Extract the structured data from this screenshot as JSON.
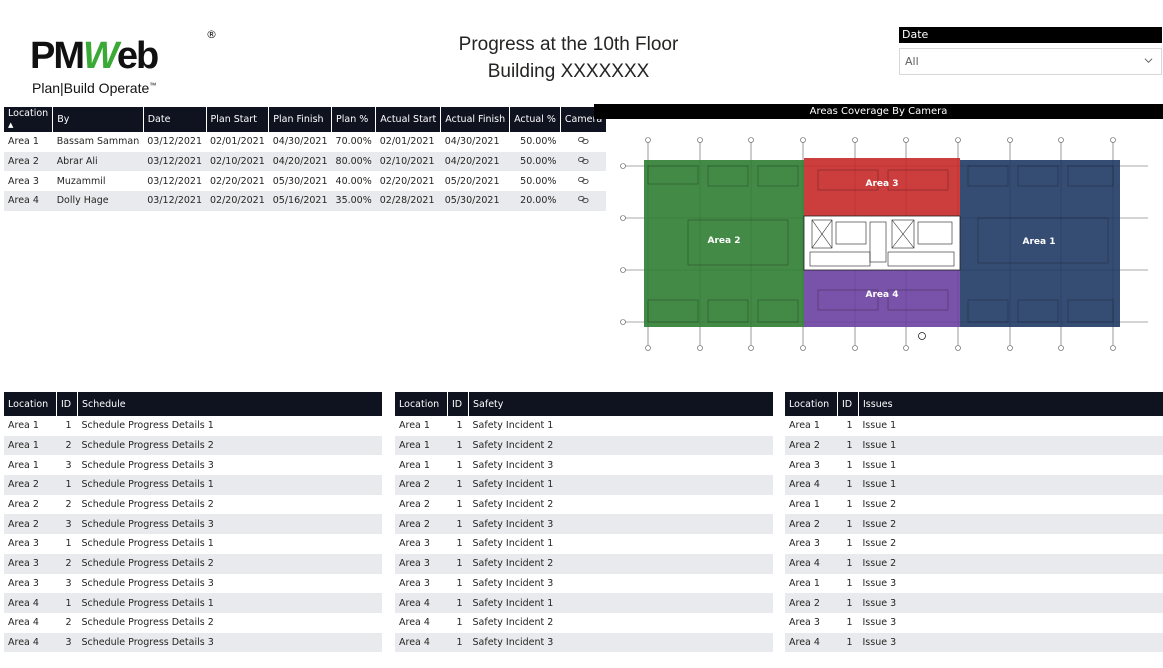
{
  "logo": {
    "main_left": "PM",
    "main_w": "W",
    "main_right": "eb",
    "registered": "®",
    "tagline": "Plan|Build Operate",
    "tm": "™"
  },
  "header": {
    "title_line1": "Progress at the 10th Floor",
    "title_line2": "Building XXXXXXX"
  },
  "date_slicer": {
    "label": "Date",
    "value": "All",
    "icon": "chevron-down-icon"
  },
  "progress_table": {
    "columns": [
      "Location",
      "By",
      "Date",
      "Plan Start",
      "Plan Finish",
      "Plan %",
      "Actual Start",
      "Actual Finish",
      "Actual %",
      "Camera"
    ],
    "sort_indicator": "▲",
    "rows": [
      [
        "Area 1",
        "Bassam Samman",
        "03/12/2021",
        "02/01/2021",
        "04/30/2021",
        "70.00%",
        "02/01/2021",
        "04/30/2021",
        "50.00%"
      ],
      [
        "Area 2",
        "Abrar Ali",
        "03/12/2021",
        "02/10/2021",
        "04/20/2021",
        "80.00%",
        "02/10/2021",
        "04/20/2021",
        "50.00%"
      ],
      [
        "Area 3",
        "Muzammil",
        "03/12/2021",
        "02/20/2021",
        "05/30/2021",
        "40.00%",
        "02/20/2021",
        "05/20/2021",
        "50.00%"
      ],
      [
        "Area 4",
        "Dolly Hage",
        "03/12/2021",
        "02/20/2021",
        "05/16/2021",
        "35.00%",
        "02/28/2021",
        "05/30/2021",
        "20.00%"
      ]
    ],
    "camera_icon": "link-icon"
  },
  "coverage_map": {
    "title": "Areas Coverage By Camera",
    "areas": [
      {
        "label": "Area 1",
        "color": "#1f3864"
      },
      {
        "label": "Area 2",
        "color": "#2e7d32"
      },
      {
        "label": "Area 3",
        "color": "#c62828"
      },
      {
        "label": "Area 4",
        "color": "#6a3fa0"
      }
    ]
  },
  "schedule_table": {
    "columns": [
      "Location",
      "ID",
      "Schedule"
    ],
    "rows": [
      [
        "Area 1",
        "1",
        "Schedule Progress Details 1"
      ],
      [
        "Area 1",
        "2",
        "Schedule Progress Details 2"
      ],
      [
        "Area 1",
        "3",
        "Schedule Progress Details 3"
      ],
      [
        "Area 2",
        "1",
        "Schedule Progress Details 1"
      ],
      [
        "Area 2",
        "2",
        "Schedule Progress Details 2"
      ],
      [
        "Area 2",
        "3",
        "Schedule Progress Details 3"
      ],
      [
        "Area 3",
        "1",
        "Schedule Progress Details 1"
      ],
      [
        "Area 3",
        "2",
        "Schedule Progress Details 2"
      ],
      [
        "Area 3",
        "3",
        "Schedule Progress Details 3"
      ],
      [
        "Area 4",
        "1",
        "Schedule Progress Details 1"
      ],
      [
        "Area 4",
        "2",
        "Schedule Progress Details 2"
      ],
      [
        "Area 4",
        "3",
        "Schedule Progress Details 3"
      ]
    ]
  },
  "safety_table": {
    "columns": [
      "Location",
      "ID",
      "Safety"
    ],
    "rows": [
      [
        "Area 1",
        "1",
        "Safety Incident 1"
      ],
      [
        "Area 1",
        "1",
        "Safety Incident 2"
      ],
      [
        "Area 1",
        "1",
        "Safety Incident 3"
      ],
      [
        "Area 2",
        "1",
        "Safety Incident 1"
      ],
      [
        "Area 2",
        "1",
        "Safety Incident 2"
      ],
      [
        "Area 2",
        "1",
        "Safety Incident 3"
      ],
      [
        "Area 3",
        "1",
        "Safety Incident 1"
      ],
      [
        "Area 3",
        "1",
        "Safety Incident 2"
      ],
      [
        "Area 3",
        "1",
        "Safety Incident 3"
      ],
      [
        "Area 4",
        "1",
        "Safety Incident 1"
      ],
      [
        "Area 4",
        "1",
        "Safety Incident 2"
      ],
      [
        "Area 4",
        "1",
        "Safety Incident 3"
      ]
    ]
  },
  "issues_table": {
    "columns": [
      "Location",
      "ID",
      "Issues"
    ],
    "rows": [
      [
        "Area 1",
        "1",
        "Issue 1"
      ],
      [
        "Area 2",
        "1",
        "Issue 1"
      ],
      [
        "Area 3",
        "1",
        "Issue 1"
      ],
      [
        "Area 4",
        "1",
        "Issue 1"
      ],
      [
        "Area 1",
        "1",
        "Issue 2"
      ],
      [
        "Area 2",
        "1",
        "Issue 2"
      ],
      [
        "Area 3",
        "1",
        "Issue 2"
      ],
      [
        "Area 4",
        "1",
        "Issue 2"
      ],
      [
        "Area 1",
        "1",
        "Issue 3"
      ],
      [
        "Area 2",
        "1",
        "Issue 3"
      ],
      [
        "Area 3",
        "1",
        "Issue 3"
      ],
      [
        "Area 4",
        "1",
        "Issue 3"
      ]
    ]
  }
}
